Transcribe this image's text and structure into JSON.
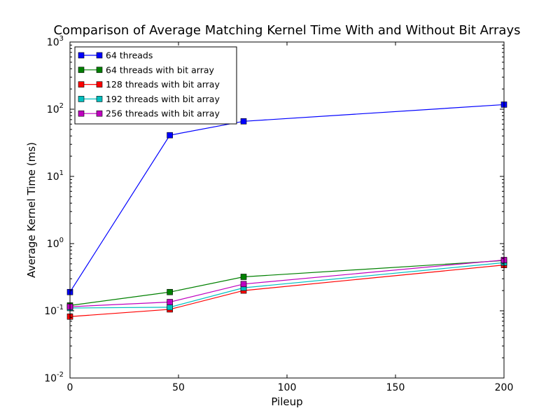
{
  "chart_data": {
    "type": "line",
    "title": "Comparison of Average Matching Kernel Time With and Without Bit Arrays",
    "xlabel": "Pileup",
    "ylabel": "Average Kernel Time (ms)",
    "xlim": [
      0,
      200
    ],
    "ylim": [
      0.01,
      1000
    ],
    "yscale": "log",
    "grid": false,
    "legend_position": "top-left",
    "x_ticks": [
      {
        "value": 0,
        "label": "0"
      },
      {
        "value": 50,
        "label": "50"
      },
      {
        "value": 100,
        "label": "100"
      },
      {
        "value": 150,
        "label": "150"
      },
      {
        "value": 200,
        "label": "200"
      }
    ],
    "y_ticks": [
      {
        "value": 0.01,
        "base": "10",
        "exp": "-2"
      },
      {
        "value": 0.1,
        "base": "10",
        "exp": "-1"
      },
      {
        "value": 1,
        "base": "10",
        "exp": "0"
      },
      {
        "value": 10,
        "base": "10",
        "exp": "1"
      },
      {
        "value": 100,
        "base": "10",
        "exp": "2"
      },
      {
        "value": 1000,
        "base": "10",
        "exp": "3"
      }
    ],
    "x": [
      0,
      46,
      80,
      200
    ],
    "series": [
      {
        "name": "64 threads",
        "color": "#0000ff",
        "values": [
          0.19,
          41,
          66,
          117
        ]
      },
      {
        "name": "64 threads with bit array",
        "color": "#008000",
        "values": [
          0.12,
          0.19,
          0.32,
          0.56
        ]
      },
      {
        "name": "128 threads with bit array",
        "color": "#ff0000",
        "values": [
          0.082,
          0.105,
          0.2,
          0.48
        ]
      },
      {
        "name": "192 threads with bit array",
        "color": "#00bfbf",
        "values": [
          0.11,
          0.113,
          0.22,
          0.52
        ]
      },
      {
        "name": "256 threads with bit array",
        "color": "#bf00bf",
        "values": [
          0.115,
          0.135,
          0.25,
          0.57
        ]
      }
    ]
  }
}
